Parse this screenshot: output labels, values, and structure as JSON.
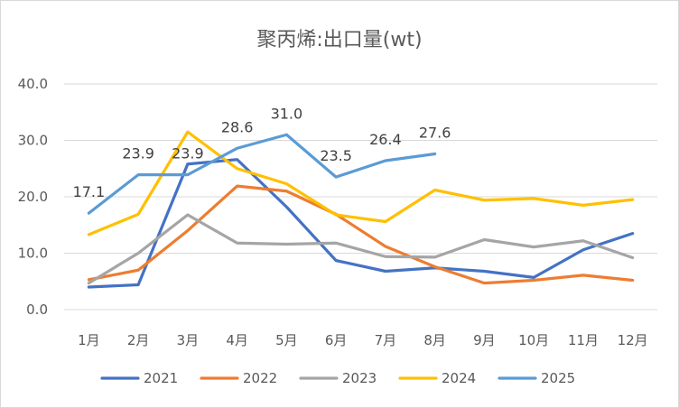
{
  "chart_data": {
    "type": "line",
    "title": "聚丙烯:出口量(wt)",
    "xlabel": "",
    "ylabel": "",
    "categories": [
      "1月",
      "2月",
      "3月",
      "4月",
      "5月",
      "6月",
      "7月",
      "8月",
      "9月",
      "10月",
      "11月",
      "12月"
    ],
    "ylim": [
      0,
      40
    ],
    "yticks": [
      "0.0",
      "10.0",
      "20.0",
      "30.0",
      "40.0"
    ],
    "grid": true,
    "legend_position": "bottom",
    "series": [
      {
        "name": "2021",
        "color": "#4472c4",
        "values": [
          4.0,
          4.4,
          25.8,
          26.6,
          18.2,
          8.7,
          6.8,
          7.4,
          6.8,
          5.7,
          10.6,
          13.5
        ]
      },
      {
        "name": "2022",
        "color": "#ed7d31",
        "values": [
          5.3,
          7.0,
          14.0,
          21.9,
          21.0,
          16.9,
          11.2,
          7.6,
          4.7,
          5.2,
          6.1,
          5.2
        ]
      },
      {
        "name": "2023",
        "color": "#a5a5a5",
        "values": [
          4.7,
          10.0,
          16.8,
          11.8,
          11.6,
          11.8,
          9.4,
          9.3,
          12.4,
          11.1,
          12.2,
          9.2
        ]
      },
      {
        "name": "2024",
        "color": "#ffc000",
        "values": [
          13.3,
          16.9,
          31.5,
          25.0,
          22.3,
          16.8,
          15.6,
          21.2,
          19.4,
          19.7,
          18.5,
          19.5
        ]
      },
      {
        "name": "2025",
        "color": "#5b9bd5",
        "values": [
          17.1,
          23.9,
          23.9,
          28.6,
          31.0,
          23.5,
          26.4,
          27.6,
          null,
          null,
          null,
          null
        ],
        "data_labels": [
          "17.1",
          "23.9",
          "23.9",
          "28.6",
          "31.0",
          "23.5",
          "26.4",
          "27.6"
        ]
      }
    ]
  }
}
